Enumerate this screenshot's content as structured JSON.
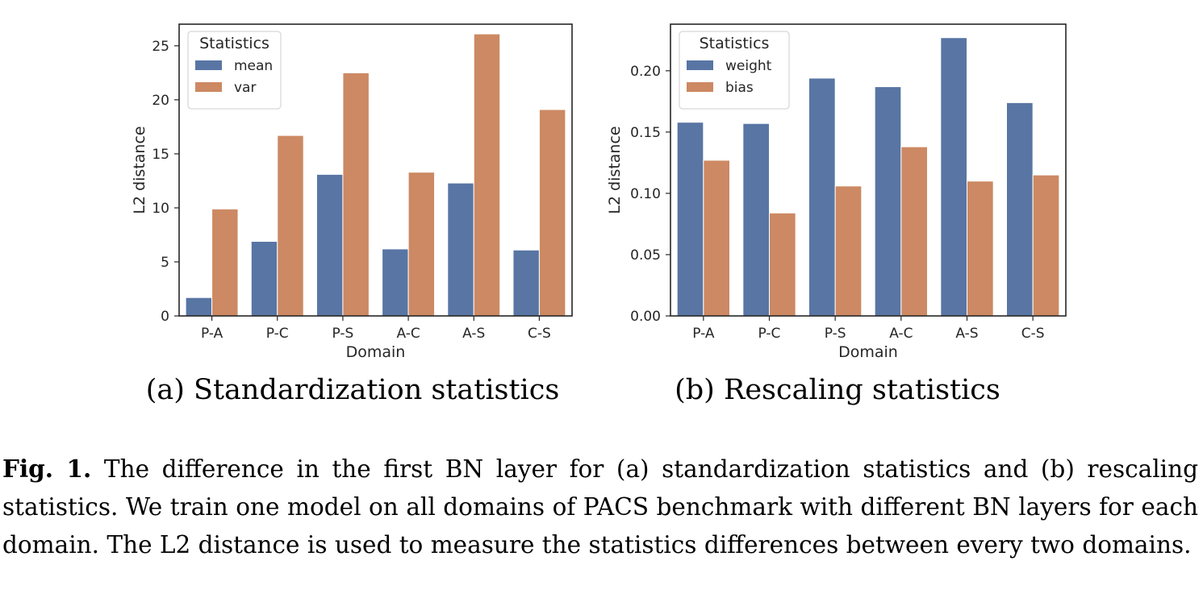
{
  "chart_data": [
    {
      "type": "bar",
      "categories": [
        "P-A",
        "P-C",
        "P-S",
        "A-C",
        "A-S",
        "C-S"
      ],
      "series": [
        {
          "name": "mean",
          "values": [
            1.7,
            6.9,
            13.1,
            6.2,
            12.3,
            6.1
          ]
        },
        {
          "name": "var",
          "values": [
            9.9,
            16.7,
            22.5,
            13.3,
            26.1,
            19.1
          ]
        }
      ],
      "xlabel": "Domain",
      "ylabel": "L2 distance",
      "ylim": [
        0,
        27
      ],
      "yticks": [
        0,
        5,
        10,
        15,
        20,
        25
      ],
      "ytick_labels": [
        "0",
        "5",
        "10",
        "15",
        "20",
        "25"
      ],
      "legend_title": "Statistics",
      "legend_position": "top-left",
      "subcaption": "(a) Standardization statistics",
      "colors": [
        "#5875a4",
        "#cc8963"
      ]
    },
    {
      "type": "bar",
      "categories": [
        "P-A",
        "P-C",
        "P-S",
        "A-C",
        "A-S",
        "C-S"
      ],
      "series": [
        {
          "name": "weight",
          "values": [
            0.158,
            0.157,
            0.194,
            0.187,
            0.227,
            0.174
          ]
        },
        {
          "name": "bias",
          "values": [
            0.127,
            0.084,
            0.106,
            0.138,
            0.11,
            0.115
          ]
        }
      ],
      "xlabel": "Domain",
      "ylabel": "L2 distance",
      "ylim": [
        0,
        0.238
      ],
      "yticks": [
        0,
        0.05,
        0.1,
        0.15,
        0.2
      ],
      "ytick_labels": [
        "0.00",
        "0.05",
        "0.10",
        "0.15",
        "0.20"
      ],
      "legend_title": "Statistics",
      "legend_position": "top-left",
      "subcaption": "(b) Rescaling statistics",
      "colors": [
        "#5875a4",
        "#cc8963"
      ]
    }
  ],
  "caption": {
    "label": "Fig. 1.",
    "text": "The difference in the first BN layer for (a) standardization statistics and (b) rescaling statistics. We train one model on all domains of PACS benchmark with different BN layers for each domain. The L2 distance is used to measure the statistics differences between every two domains."
  }
}
